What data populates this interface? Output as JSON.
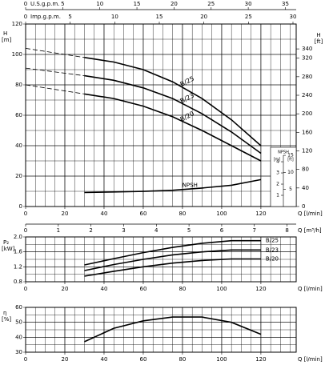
{
  "chart_data": [
    {
      "type": "line",
      "ylabel": "H",
      "yunit": "[m]",
      "y2label": "H",
      "y2unit": "[ft]",
      "xlabel": "Q [l/min]",
      "xlim": [
        0,
        138
      ],
      "xticks": [
        0,
        20,
        40,
        60,
        80,
        100,
        120
      ],
      "ylim": [
        0,
        120
      ],
      "yticks": [
        0,
        20,
        40,
        60,
        80,
        100,
        120
      ],
      "y2lim": [
        0,
        393.7
      ],
      "y2ticks": [
        0,
        40,
        80,
        120,
        160,
        200,
        240,
        280,
        320,
        340
      ],
      "top_axes": [
        {
          "label": "U.S.g.p.m.",
          "lim": [
            0,
            36.46
          ],
          "ticks": [
            0,
            5,
            10,
            15,
            20,
            25,
            30,
            35
          ]
        },
        {
          "label": "Imp.g.p.m.",
          "lim": [
            0,
            30.36
          ],
          "ticks": [
            0,
            5,
            10,
            15,
            20,
            25,
            30
          ]
        }
      ],
      "bottom_axis": {
        "label": "Q [m³/h]",
        "lim": [
          0,
          8.28
        ],
        "ticks": [
          0,
          1,
          2,
          3,
          4,
          5,
          6,
          7,
          8
        ]
      },
      "grid": true,
      "color": "#000000",
      "x": [
        30,
        45,
        60,
        75,
        90,
        105,
        120
      ],
      "ext_x": [
        0,
        30
      ],
      "series": [
        {
          "name": "B/25",
          "values": [
            98,
            95,
            90,
            82,
            71,
            57,
            40
          ],
          "ext": [
            104,
            98
          ]
        },
        {
          "name": "B/23",
          "values": [
            86,
            83,
            78,
            71,
            61,
            49,
            35
          ],
          "ext": [
            91,
            86
          ]
        },
        {
          "name": "B/20",
          "values": [
            74,
            71,
            66,
            59,
            50,
            40,
            30
          ],
          "ext": [
            80,
            74
          ]
        }
      ],
      "npsh": {
        "name": "NPSH",
        "unit_m": "[m]",
        "unit_ft": "[ft]",
        "ylim": [
          0,
          16.3
        ],
        "ftlim": [
          0,
          53.5
        ],
        "mticks": [
          1,
          2,
          3,
          4
        ],
        "ftticks": [
          5,
          10,
          15
        ],
        "values": [
          1.25,
          1.3,
          1.35,
          1.45,
          1.65,
          1.9,
          2.4
        ]
      }
    },
    {
      "type": "line",
      "ylabel": "P₂",
      "yunit": "[kW]",
      "xlabel": "Q [l/min]",
      "xlim": [
        0,
        138
      ],
      "xticks": [
        0,
        20,
        40,
        60,
        80,
        100,
        120
      ],
      "ylim": [
        0.8,
        2.0
      ],
      "yticks": [
        0.8,
        1.2,
        1.6,
        {
          "value": 2,
          "label": "2.0"
        }
      ],
      "grid": true,
      "color": "#000000",
      "x": [
        30,
        45,
        60,
        75,
        90,
        105,
        120
      ],
      "series": [
        {
          "name": "B/25",
          "values": [
            1.25,
            1.42,
            1.58,
            1.72,
            1.83,
            1.9,
            1.9
          ]
        },
        {
          "name": "B/23",
          "values": [
            1.1,
            1.26,
            1.4,
            1.52,
            1.6,
            1.65,
            1.65
          ]
        },
        {
          "name": "B/20",
          "values": [
            0.95,
            1.08,
            1.2,
            1.3,
            1.37,
            1.41,
            1.41
          ]
        }
      ]
    },
    {
      "type": "line",
      "ylabel": "η",
      "yunit": "[%]",
      "xlabel": "Q [l/min]",
      "xlim": [
        0,
        138
      ],
      "xticks": [
        0,
        20,
        40,
        60,
        80,
        100,
        120
      ],
      "ylim": [
        30,
        60
      ],
      "yticks": [
        30,
        40,
        50,
        60
      ],
      "grid": true,
      "color": "#000000",
      "x": [
        30,
        45,
        60,
        75,
        90,
        105,
        120
      ],
      "series": [
        {
          "values": [
            37,
            46,
            51,
            53.5,
            53.5,
            50,
            42
          ]
        }
      ]
    }
  ]
}
